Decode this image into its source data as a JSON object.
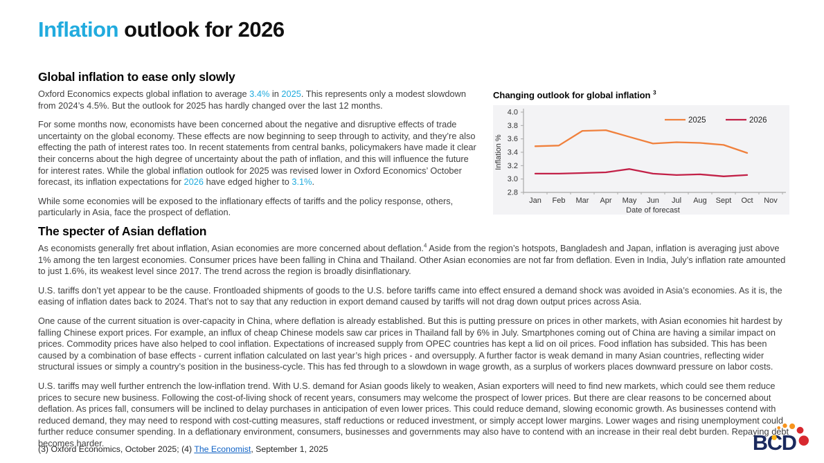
{
  "colors": {
    "accent_cyan": "#21ABDE",
    "link_blue": "#0F62C5",
    "series_2025_orange": "#F0803C",
    "series_2026_crimson": "#C22047",
    "chart_plot_bg": "#F3F3F5",
    "logo_navy": "#1B2A5E",
    "logo_orange": "#F7941D",
    "logo_yellow": "#FDB515",
    "logo_red": "#D7282F"
  },
  "title": {
    "accent": "Inflation",
    "rest": " outlook for 2026"
  },
  "sections": {
    "global": {
      "heading": "Global inflation to ease only slowly",
      "p1": {
        "s1": "Oxford Economics expects global inflation to average ",
        "a1": "3.4%",
        "s2": " in ",
        "a2": "2025",
        "s3": ". This represents only a modest slowdown from 2024’s 4.5%. But the outlook for 2025 has hardly changed over the last 12 months."
      },
      "p2": {
        "s1": "For some months now, economists have been concerned about the negative and disruptive effects of trade uncertainty on the global economy. These effects are now beginning to seep through to activity, and they’re also effecting the path of interest rates too. In recent statements from central banks, policymakers have made it clear their concerns about the high degree of uncertainty about the path of inflation, and this will influence the future for interest rates. While the global inflation outlook for 2025 was revised lower in Oxford Economics’ October forecast, its inflation expectations for ",
        "a1": "2026",
        "s2": " have edged higher to ",
        "a2": "3.1%",
        "s3": "."
      },
      "p3": "While some economies will be exposed to the inflationary effects of tariffs and the policy response, others, particularly in Asia, face the prospect of deflation."
    },
    "asia": {
      "heading": "The specter of Asian deflation",
      "p1a": "As economists generally fret about inflation, Asian economies are more concerned about deflation.",
      "p1sup": "4",
      "p1b": " Aside from the region’s hotspots, Bangladesh and Japan, inflation is averaging just above 1% among the ten largest economies. Consumer prices have been falling in China and Thailand. Other Asian economies are not far from deflation. Even in India, July’s inflation rate amounted to just 1.6%, its weakest level since 2017. The trend across the region is broadly disinflationary.",
      "p2": "U.S. tariffs don’t yet appear to be the cause. Frontloaded shipments of goods to the U.S. before tariffs came into effect ensured a demand shock was avoided in Asia’s economies. As it is, the easing of inflation dates back to 2024. That’s not to say that any reduction in export demand caused by tariffs will not drag down output prices across Asia.",
      "p3": "One cause of the current situation is over-capacity in China, where deflation is already established. But this is putting pressure on prices in other markets, with Asian economies hit hardest by falling Chinese export prices. For example, an influx of cheap Chinese models saw car prices in Thailand fall by 6% in July. Smartphones coming out of China are having a similar impact on prices. Commodity prices have also helped to cool inflation. Expectations of increased supply from OPEC countries has kept a lid on oil prices. Food inflation has subsided. This has been caused by a combination of base effects - current inflation calculated on last year’s high prices - and oversupply. A further factor is weak demand in many Asian countries, reflecting wider structural issues or simply a country’s position in the business-cycle. This has fed through to a slowdown in wage growth, as a surplus of workers places downward pressure on labor costs.",
      "p4": "U.S. tariffs may well further entrench the low-inflation trend. With U.S. demand for Asian goods likely to weaken, Asian exporters will need to find new markets, which could see them reduce prices to secure new business. Following the cost-of-living shock of recent years, consumers may welcome the prospect of lower prices. But there are clear reasons to be concerned about deflation. As prices fall, consumers will be inclined to delay purchases in anticipation of even lower prices. This could reduce demand, slowing economic growth. As businesses contend with reduced demand, they may need to respond with cost-cutting measures, staff reductions or reduced investment, or simply accept lower margins. Lower wages and rising unemployment could further reduce consumer spending. In a deflationary environment, consumers, businesses and governments may also have to contend with an increase in their real debt burden. Repaying debt becomes harder."
    }
  },
  "chart_data": {
    "type": "line",
    "title": "Changing outlook for global inflation",
    "title_footnote": "3",
    "categories": [
      "Jan",
      "Feb",
      "Mar",
      "Apr",
      "May",
      "Jun",
      "Jul",
      "Aug",
      "Sept",
      "Oct",
      "Nov"
    ],
    "series": [
      {
        "name": "2025",
        "color": "#F0803C",
        "values": [
          3.49,
          3.5,
          3.72,
          3.73,
          3.63,
          3.53,
          3.55,
          3.54,
          3.51,
          3.39,
          null
        ]
      },
      {
        "name": "2026",
        "color": "#C22047",
        "values": [
          3.08,
          3.08,
          3.09,
          3.1,
          3.15,
          3.08,
          3.06,
          3.07,
          3.04,
          3.06,
          null
        ]
      }
    ],
    "xlabel": "Date of forecast",
    "ylabel": "Inflation %",
    "ylim": [
      2.8,
      4.0
    ],
    "ytick_step": 0.2,
    "grid": false,
    "legend_position": "top-right",
    "plot_bg": "#F3F3F5"
  },
  "footer": {
    "s1": "(3) Oxford Economics, October 2025; (4) ",
    "link": "The Economist",
    "s2": ", September 1, 2025"
  },
  "logo": {
    "text": "BCD"
  }
}
